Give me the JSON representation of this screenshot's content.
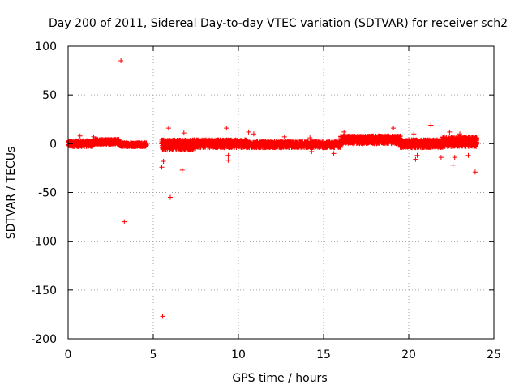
{
  "chart_data": {
    "type": "scatter",
    "title": "Day 200 of 2011, Sidereal Day-to-day VTEC variation (SDTVAR) for receiver sch2",
    "xlabel": "GPS time / hours",
    "ylabel": "SDTVAR / TECUs",
    "xlim": [
      0,
      25
    ],
    "ylim": [
      -200,
      100
    ],
    "xticks": [
      0,
      5,
      10,
      15,
      20,
      25
    ],
    "yticks": [
      -200,
      -150,
      -100,
      -50,
      0,
      50,
      100
    ],
    "xtick_labels": [
      "0",
      "5",
      "10",
      "15",
      "20",
      "25"
    ],
    "ytick_labels": [
      "-200",
      "-150",
      "-100",
      "-50",
      "0",
      "50",
      "100"
    ],
    "grid": true,
    "marker": "+",
    "color": "#ff0000",
    "band_segments": [
      {
        "x_start": 0.0,
        "x_end": 1.5,
        "center": 0,
        "half_width": 3
      },
      {
        "x_start": 1.5,
        "x_end": 3.0,
        "center": 2,
        "half_width": 2.5
      },
      {
        "x_start": 3.0,
        "x_end": 4.6,
        "center": -1,
        "half_width": 2
      },
      {
        "x_start": 5.5,
        "x_end": 7.5,
        "center": -1,
        "half_width": 5
      },
      {
        "x_start": 7.5,
        "x_end": 10.5,
        "center": 0,
        "half_width": 4
      },
      {
        "x_start": 10.5,
        "x_end": 14.0,
        "center": -1,
        "half_width": 3
      },
      {
        "x_start": 14.0,
        "x_end": 16.0,
        "center": -1,
        "half_width": 3
      },
      {
        "x_start": 16.0,
        "x_end": 19.5,
        "center": 4,
        "half_width": 4
      },
      {
        "x_start": 19.5,
        "x_end": 22.0,
        "center": 0,
        "half_width": 4
      },
      {
        "x_start": 22.0,
        "x_end": 24.0,
        "center": 2,
        "half_width": 5
      }
    ],
    "points": [
      {
        "x": 3.1,
        "y": 85
      },
      {
        "x": 3.3,
        "y": -80
      },
      {
        "x": 5.55,
        "y": -177
      },
      {
        "x": 5.5,
        "y": -24
      },
      {
        "x": 5.6,
        "y": -18
      },
      {
        "x": 5.9,
        "y": 16
      },
      {
        "x": 6.0,
        "y": -55
      },
      {
        "x": 6.7,
        "y": -27
      },
      {
        "x": 6.8,
        "y": 11
      },
      {
        "x": 0.7,
        "y": 8
      },
      {
        "x": 1.5,
        "y": 7
      },
      {
        "x": 9.3,
        "y": 16
      },
      {
        "x": 9.4,
        "y": -17
      },
      {
        "x": 9.4,
        "y": -12
      },
      {
        "x": 10.6,
        "y": 12
      },
      {
        "x": 10.9,
        "y": 10
      },
      {
        "x": 12.7,
        "y": 7
      },
      {
        "x": 14.2,
        "y": 6
      },
      {
        "x": 14.3,
        "y": -8
      },
      {
        "x": 15.6,
        "y": -10
      },
      {
        "x": 16.2,
        "y": 12
      },
      {
        "x": 19.1,
        "y": 16
      },
      {
        "x": 20.3,
        "y": 10
      },
      {
        "x": 20.4,
        "y": -16
      },
      {
        "x": 20.5,
        "y": -12
      },
      {
        "x": 21.3,
        "y": 19
      },
      {
        "x": 21.9,
        "y": -14
      },
      {
        "x": 22.4,
        "y": 12
      },
      {
        "x": 22.6,
        "y": -22
      },
      {
        "x": 22.7,
        "y": -14
      },
      {
        "x": 23.0,
        "y": 10
      },
      {
        "x": 23.5,
        "y": -12
      },
      {
        "x": 23.9,
        "y": -29
      }
    ]
  }
}
